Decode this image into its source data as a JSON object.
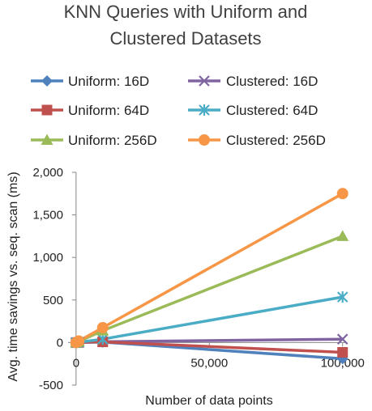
{
  "chart_data": {
    "type": "line",
    "title_lines": [
      "KNN Queries with Uniform and",
      "Clustered Datasets"
    ],
    "xlabel": "Number of data points",
    "ylabel": "Avg. time savings vs. seq. scan (ms)",
    "x": [
      0,
      1000,
      10000,
      100000
    ],
    "xlim": [
      -3000,
      101000
    ],
    "ylim": [
      -500,
      2000
    ],
    "x_ticks": [
      0,
      50000,
      100000
    ],
    "x_tick_labels": [
      "0",
      "50,000",
      "100,000"
    ],
    "y_ticks": [
      -500,
      0,
      500,
      1000,
      1500,
      2000
    ],
    "y_tick_labels": [
      "-500",
      "0",
      "500",
      "1,000",
      "1,500",
      "2,000"
    ],
    "grid": false,
    "legend_position": "top",
    "series": [
      {
        "name": "Uniform: 16D",
        "color": "#4f81bd",
        "marker": "diamond",
        "values": [
          0,
          1,
          5,
          -190
        ]
      },
      {
        "name": "Clustered: 16D",
        "color": "#8064a2",
        "marker": "x",
        "values": [
          0,
          2,
          10,
          40
        ]
      },
      {
        "name": "Uniform: 64D",
        "color": "#c0504d",
        "marker": "square",
        "values": [
          0,
          1,
          8,
          -115
        ]
      },
      {
        "name": "Clustered: 64D",
        "color": "#4bacc6",
        "marker": "star",
        "values": [
          0,
          4,
          40,
          535
        ]
      },
      {
        "name": "Uniform: 256D",
        "color": "#9bbb59",
        "marker": "triangle",
        "values": [
          0,
          12,
          140,
          1250
        ]
      },
      {
        "name": "Clustered: 256D",
        "color": "#f79646",
        "marker": "circle",
        "values": [
          0,
          18,
          175,
          1750
        ]
      }
    ]
  }
}
